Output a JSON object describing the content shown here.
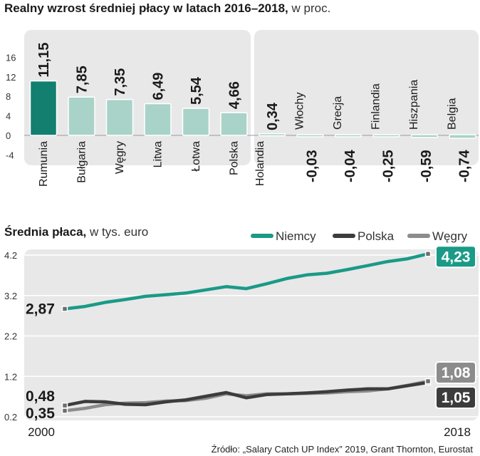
{
  "chart_data": [
    {
      "type": "bar",
      "title": "Realny wzrost średniej płacy w latach 2016–2018,",
      "subtitle": "w proc.",
      "categories": [
        "Rumunia",
        "Bułgaria",
        "Węgry",
        "Litwa",
        "Łotwa",
        "Polska",
        "Holandia",
        "Włochy",
        "Grecja",
        "Finlandia",
        "Hiszpania",
        "Belgia"
      ],
      "values": [
        11.15,
        7.85,
        7.35,
        6.49,
        5.54,
        4.66,
        0.34,
        -0.03,
        -0.04,
        -0.25,
        -0.59,
        -0.74
      ],
      "value_labels": [
        "11,15",
        "7,85",
        "7,35",
        "6,49",
        "5,54",
        "4,66",
        "0,34",
        "-0,03",
        "-0,04",
        "-0,25",
        "-0,59",
        "-0,74"
      ],
      "yticks": [
        "16",
        "12",
        "8",
        "4",
        "0",
        "-4"
      ],
      "ylim": [
        -4,
        16
      ],
      "highlight": "Rumunia",
      "colors": {
        "highlight": "#137f6f",
        "bar": "#a9d3c8",
        "panel": "#e8e8e8"
      }
    },
    {
      "type": "line",
      "title": "Średnia płaca,",
      "subtitle": "w tys. euro",
      "x": [
        2000,
        2001,
        2002,
        2003,
        2004,
        2005,
        2006,
        2007,
        2008,
        2009,
        2010,
        2011,
        2012,
        2013,
        2014,
        2015,
        2016,
        2017,
        2018
      ],
      "xlabels": [
        "2000",
        "2018"
      ],
      "yticks": [
        "4.2",
        "3.2",
        "2.2",
        "1.2",
        "0.2"
      ],
      "ylim": [
        0.2,
        4.4
      ],
      "series": [
        {
          "name": "Niemcy",
          "color": "#1a9a87",
          "values": [
            2.87,
            2.93,
            3.03,
            3.1,
            3.18,
            3.22,
            3.26,
            3.34,
            3.42,
            3.37,
            3.49,
            3.62,
            3.71,
            3.75,
            3.84,
            3.94,
            4.04,
            4.11,
            4.23
          ],
          "start_label": "2,87",
          "end_label": "4,23"
        },
        {
          "name": "Polska",
          "color": "#3c3c3c",
          "values": [
            0.48,
            0.58,
            0.57,
            0.51,
            0.5,
            0.57,
            0.62,
            0.71,
            0.8,
            0.67,
            0.75,
            0.77,
            0.79,
            0.82,
            0.86,
            0.89,
            0.89,
            0.97,
            1.05
          ],
          "start_label": "0,48",
          "end_label": "1,05"
        },
        {
          "name": "Węgry",
          "color": "#8c8c8c",
          "values": [
            0.35,
            0.41,
            0.5,
            0.54,
            0.55,
            0.59,
            0.6,
            0.66,
            0.77,
            0.72,
            0.77,
            0.77,
            0.78,
            0.79,
            0.82,
            0.84,
            0.89,
            0.98,
            1.08
          ],
          "start_label": "0,35",
          "end_label": "1,08"
        }
      ]
    }
  ],
  "source": "Źródło: „Salary Catch UP Index” 2019, Grant Thornton, Eurostat"
}
